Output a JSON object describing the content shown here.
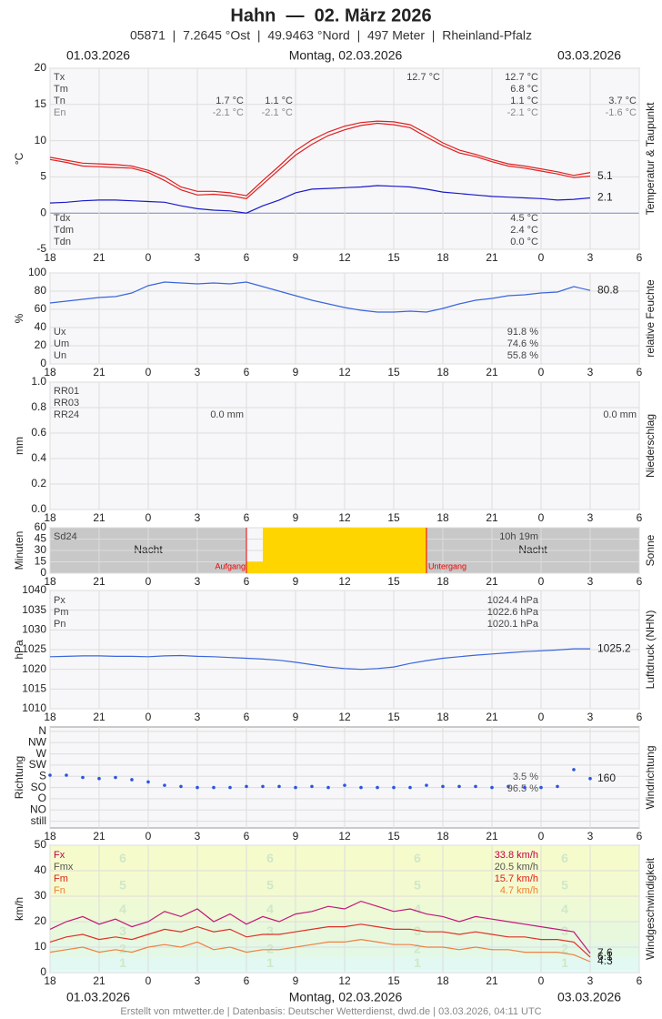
{
  "header": {
    "title": "Hahn  —  02. März 2026",
    "subtitle": "05871  |  7.2645 °Ost  |  49.9463 °Nord  |  497 Meter  |  Rheinland-Pfalz",
    "date_left": "01.03.2026",
    "date_center": "Montag, 02.03.2026",
    "date_right": "03.03.2026"
  },
  "x_axis": {
    "xlim": [
      0,
      36
    ],
    "xticks": [
      {
        "value": 0,
        "label": "18"
      },
      {
        "value": 3,
        "label": "21"
      },
      {
        "value": 6,
        "label": "0"
      },
      {
        "value": 9,
        "label": "3"
      },
      {
        "value": 12,
        "label": "6"
      },
      {
        "value": 15,
        "label": "9"
      },
      {
        "value": 18,
        "label": "12"
      },
      {
        "value": 21,
        "label": "15"
      },
      {
        "value": 24,
        "label": "18"
      },
      {
        "value": 27,
        "label": "21"
      },
      {
        "value": 30,
        "label": "0"
      },
      {
        "value": 33,
        "label": "3"
      },
      {
        "value": 36,
        "label": "6"
      }
    ]
  },
  "chart_data": [
    {
      "type": "line",
      "ylabel": "°C",
      "side_label": "Temperatur & Taupunkt",
      "ylim": [
        -5,
        20
      ],
      "yticks": [
        -5,
        0,
        5,
        10,
        15,
        20
      ],
      "grid": true,
      "x": [
        0,
        1,
        2,
        3,
        4,
        5,
        6,
        7,
        8,
        9,
        10,
        11,
        12,
        13,
        14,
        15,
        16,
        17,
        18,
        19,
        20,
        21,
        22,
        23,
        24,
        25,
        26,
        27,
        28,
        29,
        30,
        31,
        32,
        33
      ],
      "series": [
        {
          "color": "#e02020",
          "end_label": true,
          "values": [
            7.4,
            7.0,
            6.5,
            6.4,
            6.3,
            6.2,
            5.6,
            4.5,
            3.2,
            2.5,
            2.6,
            2.4,
            2.0,
            4.0,
            6.0,
            8.0,
            9.5,
            10.7,
            11.5,
            12.1,
            12.4,
            12.2,
            11.8,
            10.5,
            9.3,
            8.3,
            7.8,
            7.1,
            6.5,
            6.2,
            5.8,
            5.4,
            4.9,
            5.1
          ]
        },
        {
          "color": "#e02020",
          "end_label": false,
          "values": [
            7.7,
            7.3,
            6.9,
            6.8,
            6.7,
            6.5,
            5.9,
            5.0,
            3.6,
            3.0,
            3.0,
            2.8,
            2.4,
            4.5,
            6.5,
            8.6,
            10.1,
            11.2,
            12.0,
            12.5,
            12.7,
            12.6,
            12.2,
            11.0,
            9.7,
            8.7,
            8.1,
            7.4,
            6.8,
            6.5,
            6.1,
            5.7,
            5.2,
            5.6
          ]
        },
        {
          "color": "#1a1acc",
          "end_label": true,
          "values": [
            1.4,
            1.5,
            1.7,
            1.8,
            1.8,
            1.7,
            1.6,
            1.5,
            1.0,
            0.6,
            0.4,
            0.3,
            0.0,
            1.0,
            1.8,
            2.8,
            3.3,
            3.4,
            3.5,
            3.6,
            3.8,
            3.7,
            3.6,
            3.3,
            2.9,
            2.7,
            2.5,
            2.3,
            2.2,
            2.1,
            2.0,
            1.8,
            1.9,
            2.1
          ]
        }
      ],
      "blocks": [
        {
          "labels": [
            "Tx",
            "Tm",
            "Tn",
            "En"
          ],
          "row_colors": [
            "#444",
            "#444",
            "#444",
            "#888"
          ],
          "columns": [
            [
              null,
              null,
              "1.7 °C",
              "-2.1 °C"
            ],
            [
              null,
              null,
              "1.1 °C",
              "-2.1 °C"
            ],
            [
              "12.7 °C",
              null,
              null,
              null
            ],
            [
              "12.7 °C",
              "6.8 °C",
              "1.1 °C",
              "-2.1 °C"
            ],
            [
              null,
              null,
              "3.7 °C",
              "-1.6 °C"
            ]
          ]
        },
        {
          "labels": [
            "Tdx",
            "Tdm",
            "Tdn"
          ],
          "row_colors": [
            "#444",
            "#444",
            "#444"
          ],
          "columns": [
            [
              "4.5 °C",
              "2.4 °C",
              "0.0 °C"
            ]
          ]
        }
      ]
    },
    {
      "type": "line",
      "ylabel": "%",
      "side_label": "relative Feuchte",
      "ylim": [
        0,
        100
      ],
      "yticks": [
        0,
        20,
        40,
        60,
        80,
        100
      ],
      "grid": true,
      "x": [
        0,
        1,
        2,
        3,
        4,
        5,
        6,
        7,
        8,
        9,
        10,
        11,
        12,
        13,
        14,
        15,
        16,
        17,
        18,
        19,
        20,
        21,
        22,
        23,
        24,
        25,
        26,
        27,
        28,
        29,
        30,
        31,
        32,
        33
      ],
      "series": [
        {
          "color": "#3a66dd",
          "end_label": true,
          "values": [
            67,
            69,
            71,
            73,
            74,
            78,
            86,
            90,
            89,
            88,
            89,
            88,
            90,
            85,
            80,
            75,
            70,
            66,
            62,
            59,
            57,
            57,
            58,
            57,
            61,
            66,
            70,
            72,
            75,
            76,
            78,
            79,
            85,
            80.8
          ]
        }
      ],
      "blocks": [
        {
          "labels": [
            "Ux",
            "Um",
            "Un"
          ],
          "row_colors": [
            "#444",
            "#444",
            "#444"
          ],
          "columns": [
            [
              "91.8 %",
              "74.6 %",
              "55.8 %"
            ]
          ]
        }
      ]
    },
    {
      "type": "bar",
      "ylabel": "mm",
      "side_label": "Niederschlag",
      "ylim": [
        0,
        1
      ],
      "yticks": [
        {
          "value": 0,
          "label": "0.0"
        },
        {
          "value": 0.2,
          "label": "0.2"
        },
        {
          "value": 0.4,
          "label": "0.4"
        },
        {
          "value": 0.6,
          "label": "0.6"
        },
        {
          "value": 0.8,
          "label": "0.8"
        },
        {
          "value": 1,
          "label": "1.0"
        }
      ],
      "grid": true,
      "x": [],
      "series": [],
      "blocks": [
        {
          "labels": [
            "RR01",
            "RR03",
            "RR24"
          ],
          "row_colors": [
            "#444",
            "#444",
            "#444"
          ],
          "columns": [
            [
              null,
              null,
              "0.0 mm"
            ],
            [
              null,
              null,
              "0.0 mm"
            ]
          ]
        }
      ]
    },
    {
      "type": "bar",
      "ylabel": "Minuten",
      "side_label": "Sonne",
      "ylim": [
        0,
        60
      ],
      "yticks": [
        0,
        15,
        30,
        45,
        60
      ],
      "grid": true,
      "x": [
        12,
        13,
        14,
        15,
        16,
        17,
        18,
        19,
        20,
        21,
        22
      ],
      "series": [
        {
          "color": "#ffd500",
          "end_label": false,
          "values": [
            15,
            60,
            60,
            60,
            60,
            60,
            60,
            60,
            60,
            60,
            60
          ]
        }
      ],
      "night_label": "Nacht",
      "sunrise_label": "Aufgang",
      "sunset_label": "Untergang",
      "blocks": [
        {
          "labels": [
            "Sd24"
          ],
          "row_colors": [
            "#444"
          ],
          "columns": [
            [
              "10h 19m"
            ]
          ]
        }
      ]
    },
    {
      "type": "line",
      "ylabel": "hPa",
      "side_label": "Luftdruck (NHN)",
      "ylim": [
        1010,
        1040
      ],
      "yticks": [
        1010,
        1015,
        1020,
        1025,
        1030,
        1035,
        1040
      ],
      "grid": true,
      "x": [
        0,
        1,
        2,
        3,
        4,
        5,
        6,
        7,
        8,
        9,
        10,
        11,
        12,
        13,
        14,
        15,
        16,
        17,
        18,
        19,
        20,
        21,
        22,
        23,
        24,
        25,
        26,
        27,
        28,
        29,
        30,
        31,
        32,
        33
      ],
      "series": [
        {
          "color": "#3a66dd",
          "end_label": true,
          "values": [
            1023.2,
            1023.3,
            1023.4,
            1023.4,
            1023.3,
            1023.3,
            1023.2,
            1023.4,
            1023.5,
            1023.3,
            1023.2,
            1023.0,
            1022.8,
            1022.6,
            1022.3,
            1021.8,
            1021.2,
            1020.6,
            1020.2,
            1020.0,
            1020.2,
            1020.6,
            1021.5,
            1022.2,
            1022.8,
            1023.2,
            1023.6,
            1023.9,
            1024.2,
            1024.5,
            1024.7,
            1024.9,
            1025.2,
            1025.2
          ]
        }
      ],
      "blocks": [
        {
          "labels": [
            "Px",
            "Pm",
            "Pn"
          ],
          "row_colors": [
            "#444",
            "#444",
            "#444"
          ],
          "columns": [
            [
              "1024.4 hPa",
              "1022.6 hPa",
              "1020.1 hPa"
            ]
          ]
        }
      ]
    },
    {
      "type": "scatter",
      "ylabel": "Richtung",
      "side_label": "Windrichtung",
      "ylim": [
        -0.6,
        8.4
      ],
      "yticks": [
        {
          "value": 8,
          "label": "N"
        },
        {
          "value": 7,
          "label": "NW"
        },
        {
          "value": 6,
          "label": "W"
        },
        {
          "value": 5,
          "label": "SW"
        },
        {
          "value": 4,
          "label": "S"
        },
        {
          "value": 3,
          "label": "SO"
        },
        {
          "value": 2,
          "label": "O"
        },
        {
          "value": 1,
          "label": "NO"
        },
        {
          "value": 0,
          "label": "still"
        }
      ],
      "grid": true,
      "x": [
        0,
        1,
        2,
        3,
        4,
        5,
        6,
        7,
        8,
        9,
        10,
        11,
        12,
        13,
        14,
        15,
        16,
        17,
        18,
        19,
        20,
        21,
        22,
        23,
        24,
        25,
        26,
        27,
        28,
        29,
        30,
        31,
        32,
        33
      ],
      "series": [
        {
          "color": "#2b55dd",
          "end_label": "160",
          "values": [
            4.1,
            4.1,
            3.9,
            3.8,
            3.9,
            3.7,
            3.5,
            3.2,
            3.1,
            3.0,
            3.0,
            3.0,
            3.1,
            3.1,
            3.1,
            3.0,
            3.1,
            3.0,
            3.2,
            3.0,
            3.0,
            3.0,
            3.0,
            3.2,
            3.1,
            3.1,
            3.1,
            3.0,
            3.1,
            3.0,
            3.0,
            3.1,
            4.6,
            3.8
          ]
        }
      ],
      "blocks": [
        {
          "labels": [],
          "row_colors": [
            "#555",
            "#555"
          ],
          "columns": [
            [
              "3.5 %",
              "96.5 %"
            ]
          ]
        }
      ]
    },
    {
      "type": "line",
      "ylabel": "km/h",
      "side_label": "Windgeschwindigkeit",
      "ylim": [
        0,
        50
      ],
      "yticks": [
        0,
        10,
        20,
        30,
        40,
        50
      ],
      "grid": true,
      "beaufort_labels": [
        "1",
        "2",
        "3",
        "4",
        "5",
        "6"
      ],
      "x": [
        0,
        1,
        2,
        3,
        4,
        5,
        6,
        7,
        8,
        9,
        10,
        11,
        12,
        13,
        14,
        15,
        16,
        17,
        18,
        19,
        20,
        21,
        22,
        23,
        24,
        25,
        26,
        27,
        28,
        29,
        30,
        31,
        32,
        33
      ],
      "series": [
        {
          "color": "#c2187a",
          "end_label": true,
          "values": [
            17,
            20,
            22,
            19,
            21,
            18,
            20,
            24,
            22,
            25,
            20,
            23,
            19,
            22,
            20,
            23,
            24,
            26,
            25,
            28,
            26,
            24,
            25,
            23,
            22,
            20,
            22,
            21,
            20,
            19,
            18,
            17,
            16,
            7.6
          ]
        },
        {
          "color": "#e0302a",
          "end_label": true,
          "values": [
            12,
            14,
            15,
            13,
            14,
            13,
            15,
            17,
            16,
            18,
            16,
            17,
            14,
            15,
            15,
            16,
            17,
            18,
            18,
            19,
            18,
            17,
            17,
            16,
            16,
            15,
            16,
            15,
            14,
            14,
            13,
            13,
            12,
            6.1
          ]
        },
        {
          "color": "#f08040",
          "end_label": true,
          "values": [
            8,
            9,
            10,
            8,
            9,
            8,
            10,
            11,
            10,
            12,
            9,
            10,
            8,
            9,
            9,
            10,
            11,
            12,
            12,
            13,
            12,
            11,
            11,
            10,
            10,
            9,
            10,
            9,
            9,
            8,
            8,
            8,
            7,
            4.3
          ]
        }
      ],
      "blocks": [
        {
          "labels": [
            "Fx",
            "Fmx",
            "Fm",
            "Fn"
          ],
          "row_colors": [
            "#c0004a",
            "#555",
            "#e0201a",
            "#f08030"
          ],
          "columns": [
            [
              "33.8 km/h",
              "20.5 km/h",
              "15.7 km/h",
              "4.7 km/h"
            ]
          ]
        }
      ]
    }
  ],
  "footer": "Erstellt von mtwetter.de | Datenbasis: Deutscher Wetterdienst, dwd.de | 03.03.2026, 04:11 UTC"
}
